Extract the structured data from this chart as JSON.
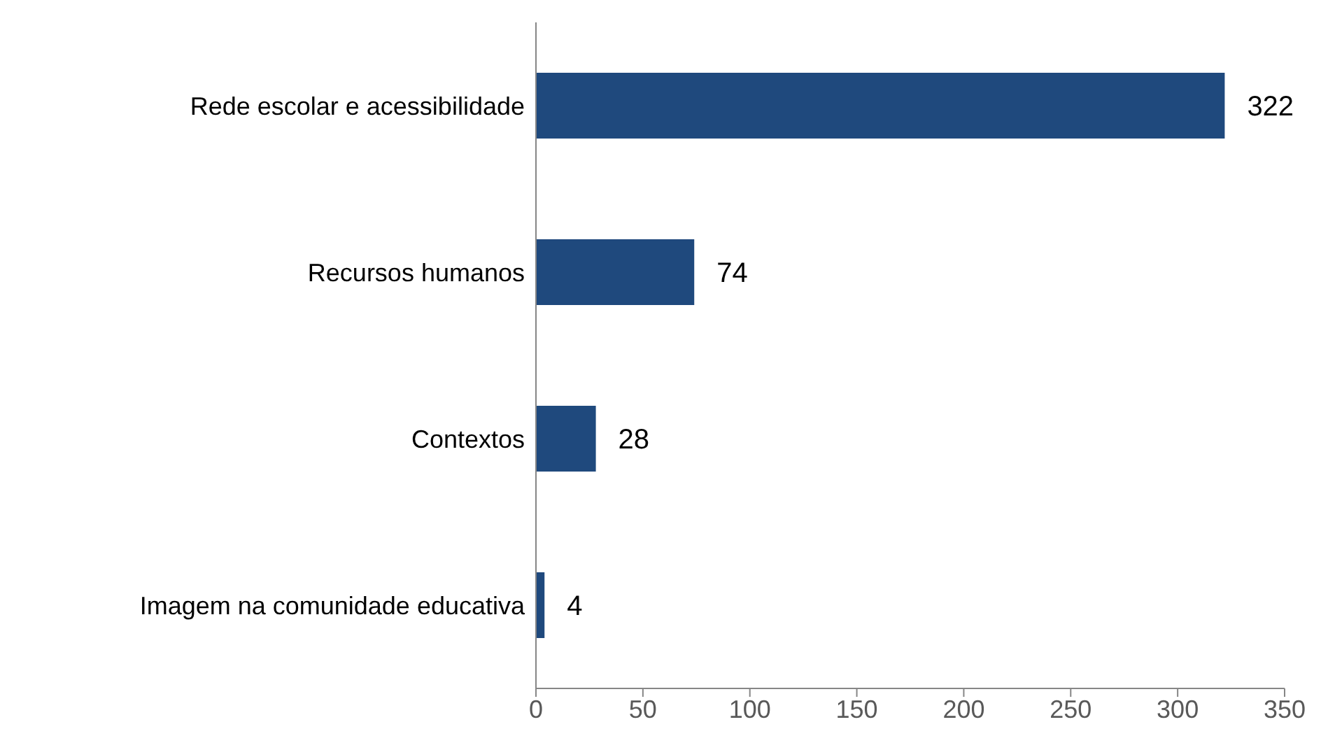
{
  "chart_data": {
    "type": "bar",
    "orientation": "horizontal",
    "categories": [
      "Rede escolar e acessibilidade",
      "Recursos humanos",
      "Contextos",
      "Imagem na comunidade educativa"
    ],
    "values": [
      322,
      74,
      28,
      4
    ],
    "color": "#1f497d",
    "data_labels": true,
    "xlim": [
      0,
      350
    ],
    "xticks": [
      0,
      50,
      100,
      150,
      200,
      250,
      300,
      350
    ],
    "grid": false
  }
}
